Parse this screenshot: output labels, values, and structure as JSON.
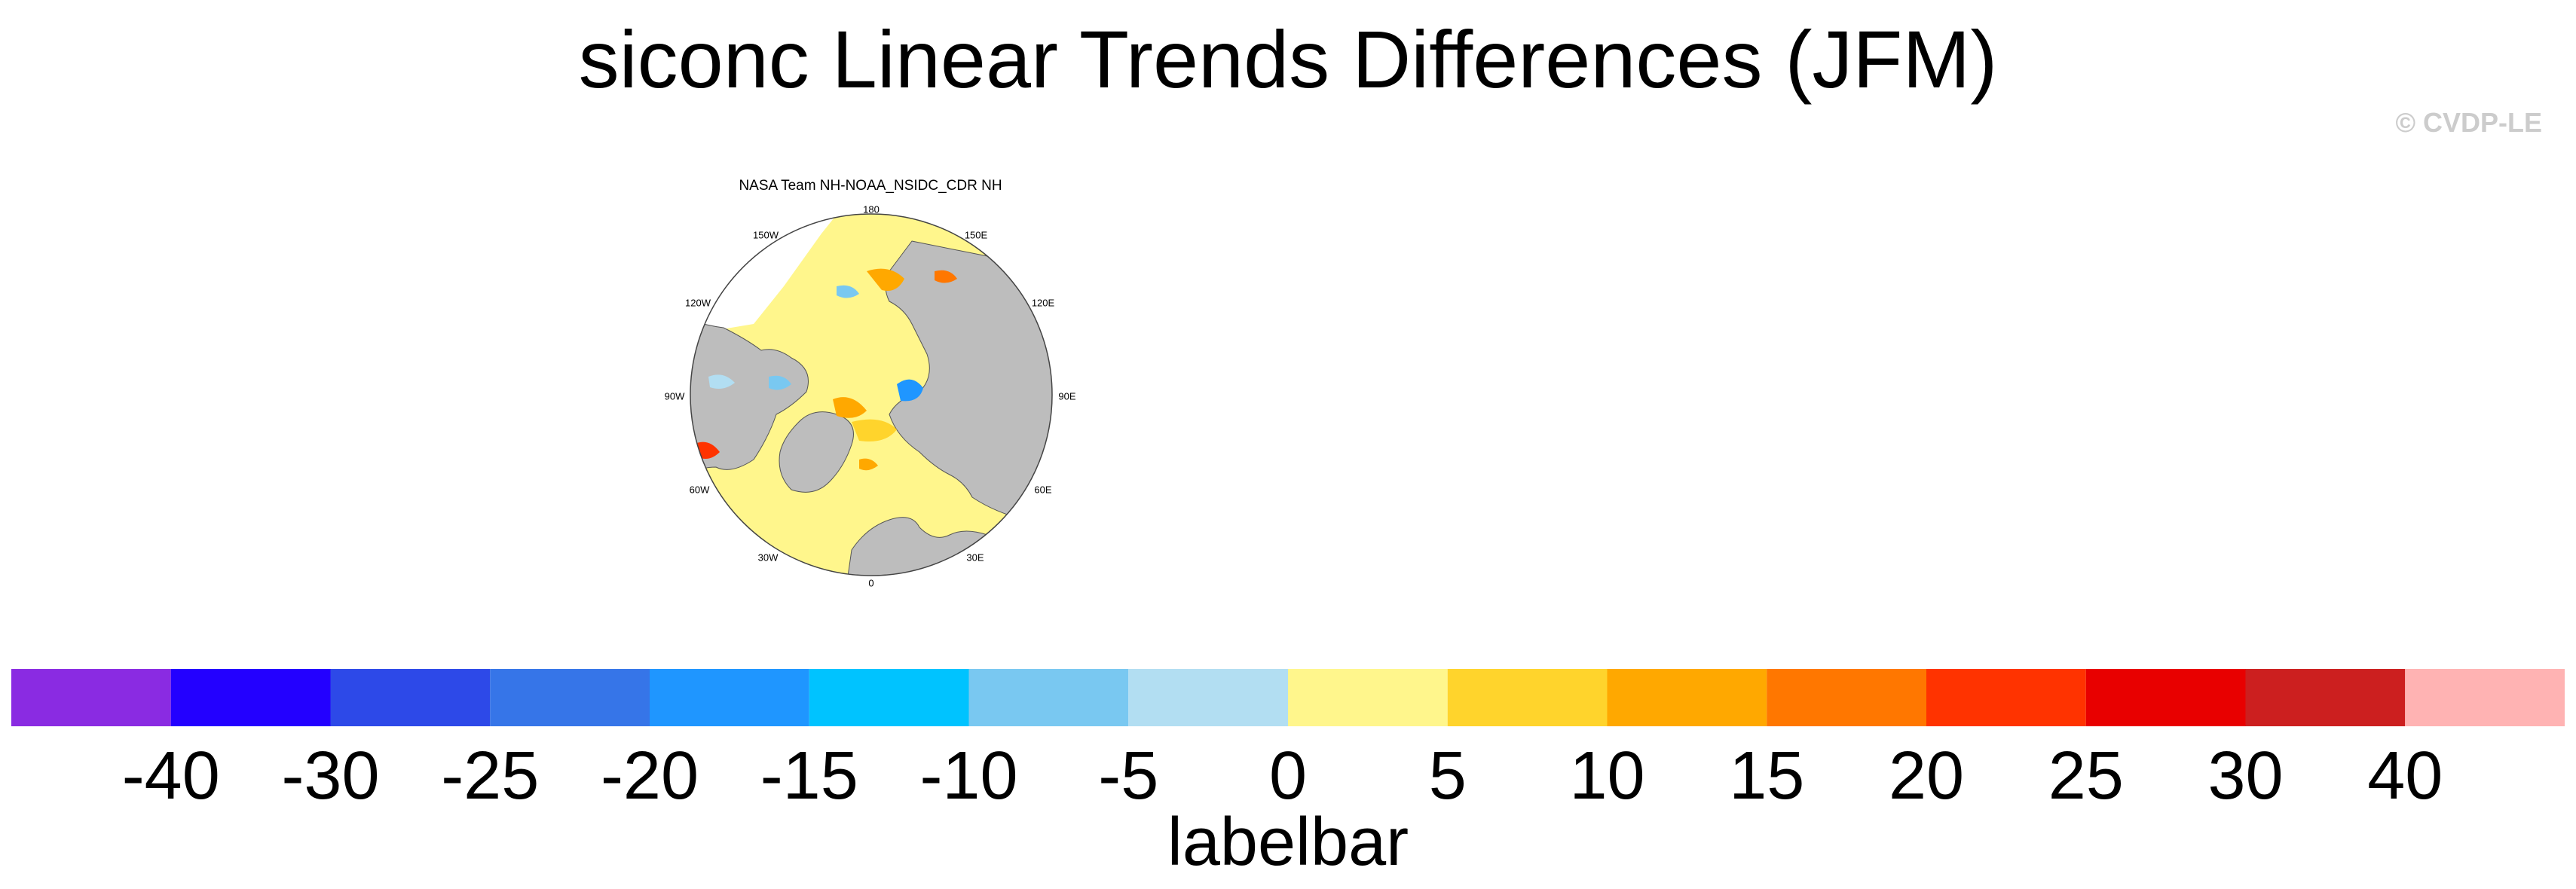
{
  "figure": {
    "title": "siconc Linear Trends Differences (JFM)",
    "credit": "© CVDP-LE"
  },
  "panel": {
    "title": "NASA Team NH-NOAA_NSIDC_CDR NH",
    "projection": "north-polar-stereographic",
    "longitude_labels": [
      "180",
      "150E",
      "120E",
      "90E",
      "60E",
      "30E",
      "0",
      "30W",
      "60W",
      "90W",
      "120W",
      "150W"
    ],
    "land_color": "#bdbdbd",
    "missing_color": "#ffffff"
  },
  "labelbar": {
    "title": "labelbar",
    "levels": [
      "-40",
      "-30",
      "-25",
      "-20",
      "-15",
      "-10",
      "-5",
      "0",
      "5",
      "10",
      "15",
      "20",
      "25",
      "30",
      "40"
    ],
    "colors": [
      "#8a2be2",
      "#2300ff",
      "#2d49e8",
      "#3675e8",
      "#1f96ff",
      "#00c3ff",
      "#79c8f1",
      "#b2def2",
      "#fff68c",
      "#ffd42c",
      "#ffa800",
      "#ff7700",
      "#ff3300",
      "#e80000",
      "#cc1f1f",
      "#ffb3b3"
    ]
  }
}
